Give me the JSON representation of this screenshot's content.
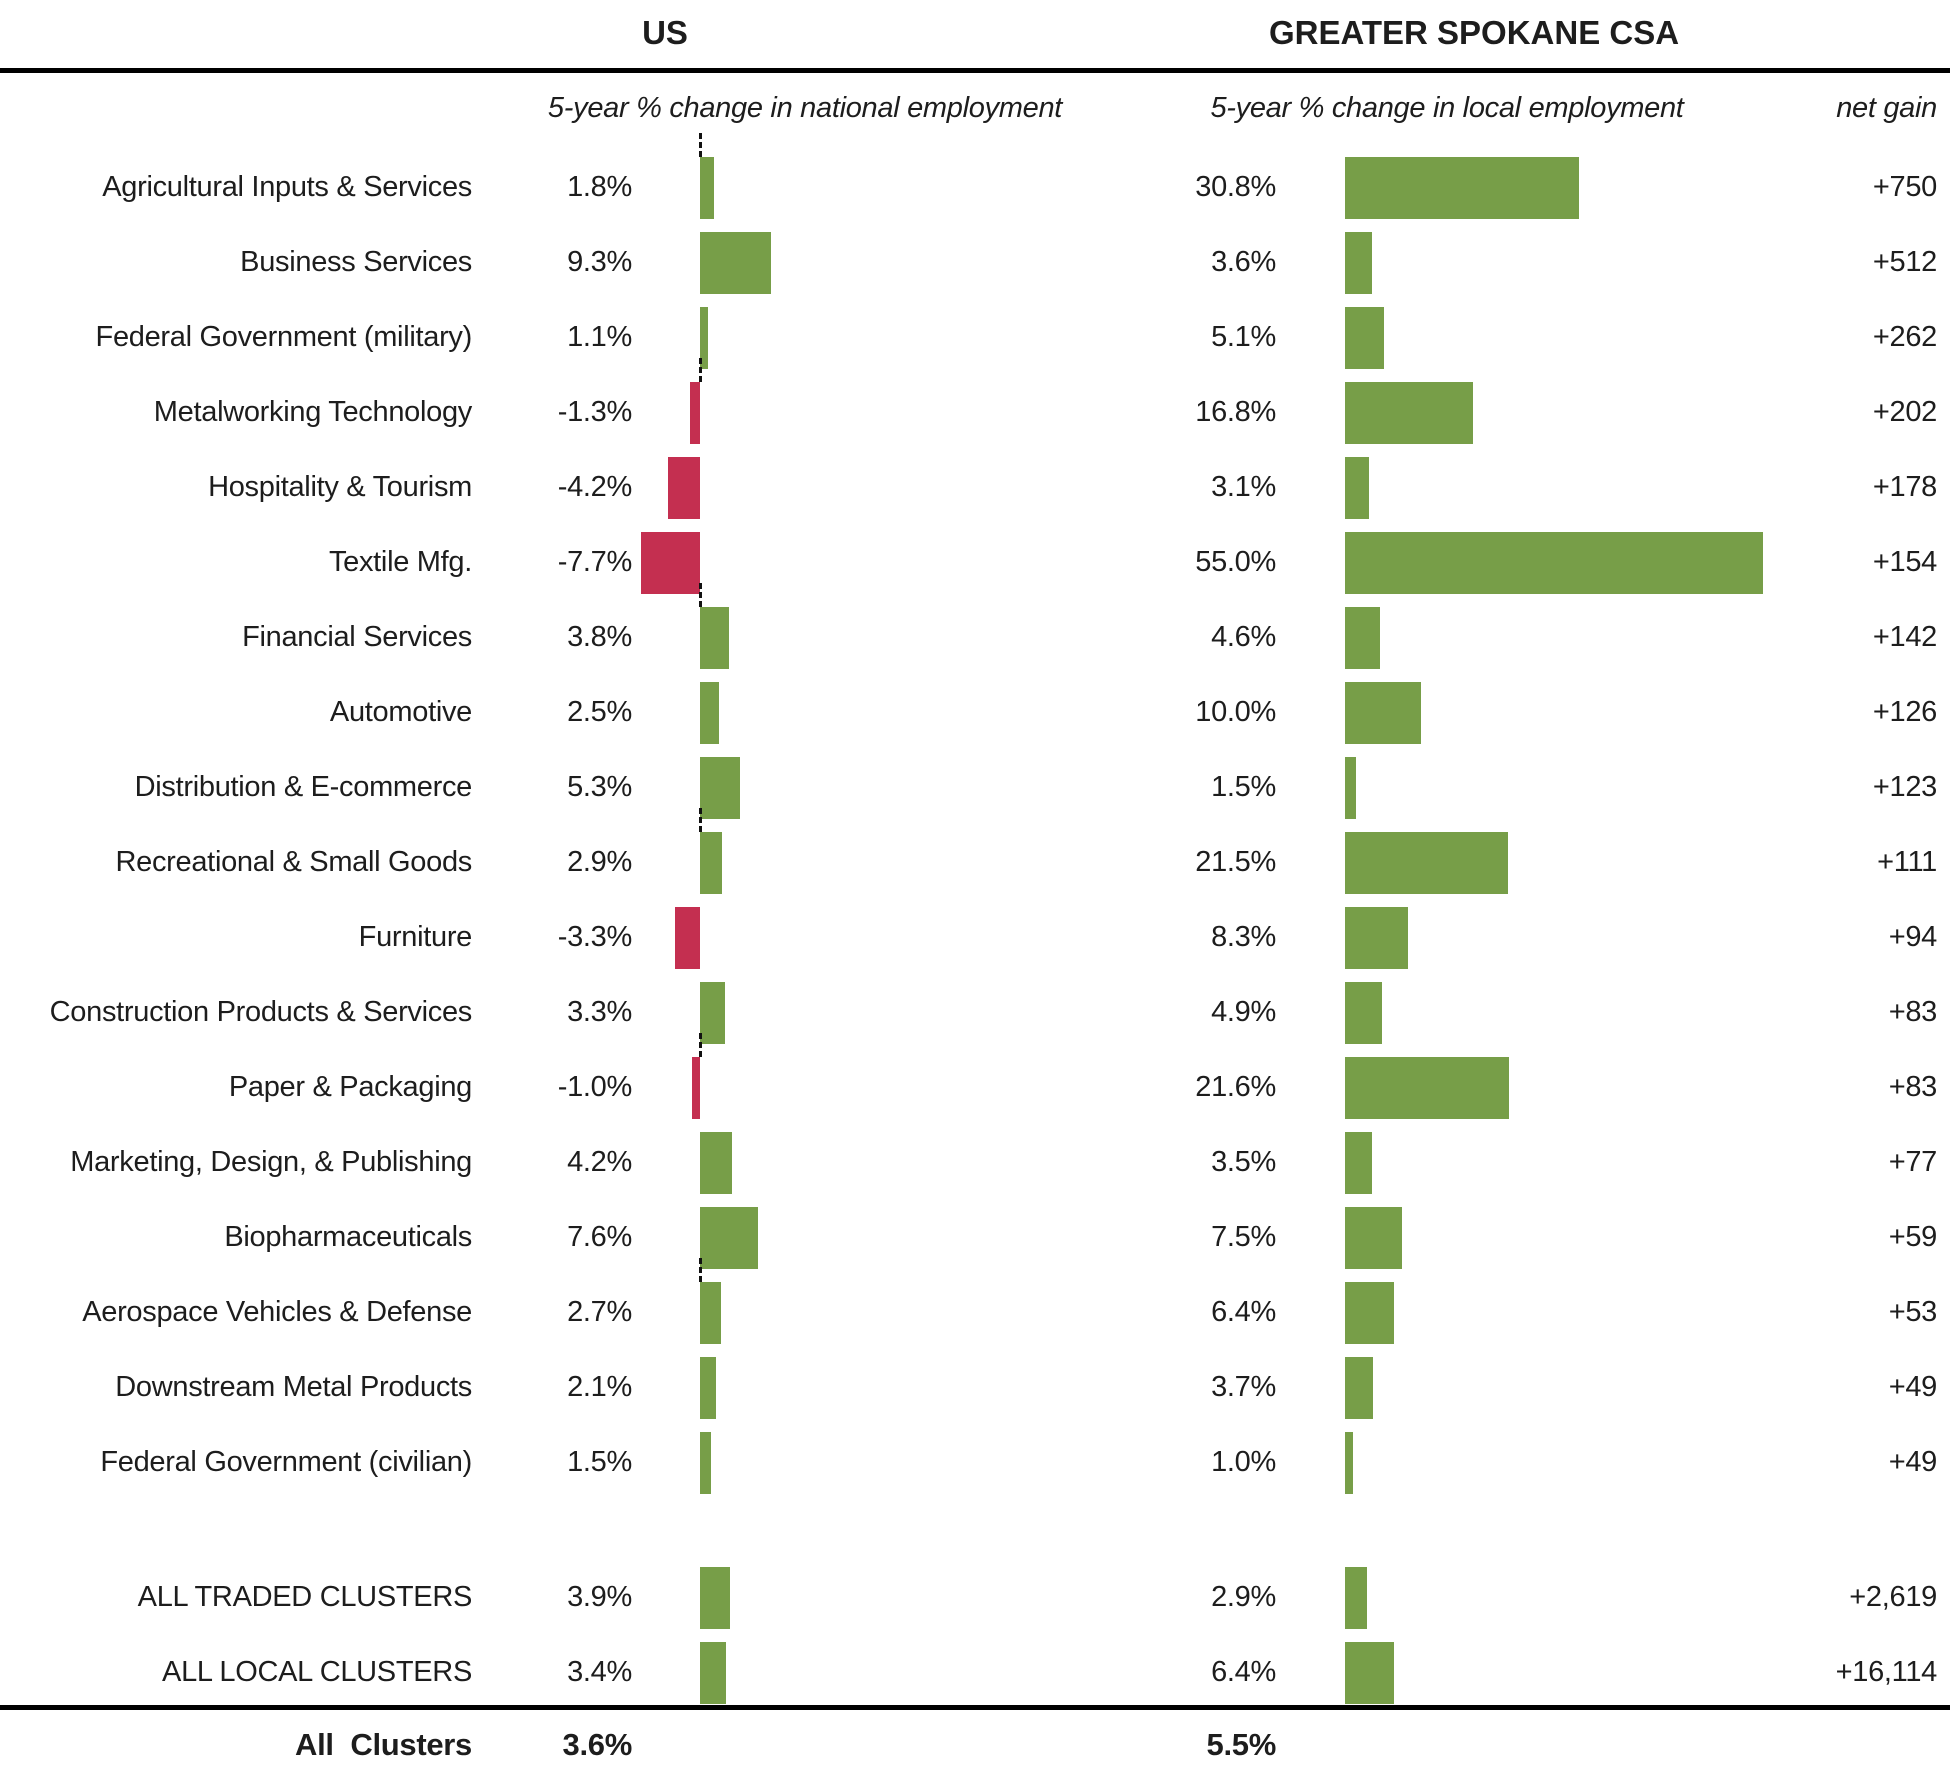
{
  "header": {
    "us_title": "US",
    "csa_title": "GREATER SPOKANE CSA",
    "us_subtitle": "5-year % change in national employment",
    "local_subtitle": "5-year % change in local employment",
    "net_gain_label": "net gain"
  },
  "colors": {
    "positive_bar": "#779e48",
    "negative_bar": "#c42f50",
    "text": "#1d1d1d",
    "rule": "#000000"
  },
  "rows": [
    {
      "label": "Agricultural Inputs & Services",
      "us_pct": 1.8,
      "us_display": "1.8%",
      "local_pct": 30.8,
      "local_display": "30.8%",
      "net_display": "+750"
    },
    {
      "label": "Business Services",
      "us_pct": 9.3,
      "us_display": "9.3%",
      "local_pct": 3.6,
      "local_display": "3.6%",
      "net_display": "+512"
    },
    {
      "label": "Federal Government (military)",
      "us_pct": 1.1,
      "us_display": "1.1%",
      "local_pct": 5.1,
      "local_display": "5.1%",
      "net_display": "+262"
    },
    {
      "label": "Metalworking Technology",
      "us_pct": -1.3,
      "us_display": "-1.3%",
      "local_pct": 16.8,
      "local_display": "16.8%",
      "net_display": "+202"
    },
    {
      "label": "Hospitality & Tourism",
      "us_pct": -4.2,
      "us_display": "-4.2%",
      "local_pct": 3.1,
      "local_display": "3.1%",
      "net_display": "+178"
    },
    {
      "label": "Textile Mfg.",
      "us_pct": -7.7,
      "us_display": "-7.7%",
      "local_pct": 55.0,
      "local_display": "55.0%",
      "net_display": "+154"
    },
    {
      "label": "Financial Services",
      "us_pct": 3.8,
      "us_display": "3.8%",
      "local_pct": 4.6,
      "local_display": "4.6%",
      "net_display": "+142"
    },
    {
      "label": "Automotive",
      "us_pct": 2.5,
      "us_display": "2.5%",
      "local_pct": 10.0,
      "local_display": "10.0%",
      "net_display": "+126"
    },
    {
      "label": "Distribution & E-commerce",
      "us_pct": 5.3,
      "us_display": "5.3%",
      "local_pct": 1.5,
      "local_display": "1.5%",
      "net_display": "+123"
    },
    {
      "label": "Recreational & Small Goods",
      "us_pct": 2.9,
      "us_display": "2.9%",
      "local_pct": 21.5,
      "local_display": "21.5%",
      "net_display": "+111"
    },
    {
      "label": "Furniture",
      "us_pct": -3.3,
      "us_display": "-3.3%",
      "local_pct": 8.3,
      "local_display": "8.3%",
      "net_display": "+94"
    },
    {
      "label": "Construction Products & Services",
      "us_pct": 3.3,
      "us_display": "3.3%",
      "local_pct": 4.9,
      "local_display": "4.9%",
      "net_display": "+83"
    },
    {
      "label": "Paper & Packaging",
      "us_pct": -1.0,
      "us_display": "-1.0%",
      "local_pct": 21.6,
      "local_display": "21.6%",
      "net_display": "+83"
    },
    {
      "label": "Marketing, Design, & Publishing",
      "us_pct": 4.2,
      "us_display": "4.2%",
      "local_pct": 3.5,
      "local_display": "3.5%",
      "net_display": "+77"
    },
    {
      "label": "Biopharmaceuticals",
      "us_pct": 7.6,
      "us_display": "7.6%",
      "local_pct": 7.5,
      "local_display": "7.5%",
      "net_display": "+59"
    },
    {
      "label": "Aerospace Vehicles & Defense",
      "us_pct": 2.7,
      "us_display": "2.7%",
      "local_pct": 6.4,
      "local_display": "6.4%",
      "net_display": "+53"
    },
    {
      "label": "Downstream Metal Products",
      "us_pct": 2.1,
      "us_display": "2.1%",
      "local_pct": 3.7,
      "local_display": "3.7%",
      "net_display": "+49"
    },
    {
      "label": "Federal Government (civilian)",
      "us_pct": 1.5,
      "us_display": "1.5%",
      "local_pct": 1.0,
      "local_display": "1.0%",
      "net_display": "+49"
    }
  ],
  "summary_rows": [
    {
      "label": "ALL TRADED CLUSTERS",
      "us_pct": 3.9,
      "us_display": "3.9%",
      "local_pct": 2.9,
      "local_display": "2.9%",
      "net_display": "+2,619"
    },
    {
      "label": "ALL LOCAL CLUSTERS",
      "us_pct": 3.4,
      "us_display": "3.4%",
      "local_pct": 6.4,
      "local_display": "6.4%",
      "net_display": "+16,114"
    }
  ],
  "total": {
    "label": "All  Clusters",
    "us": "3.6%",
    "local": "5.5%"
  },
  "us_zero_dash_rows": [
    0,
    3,
    6,
    9,
    12,
    15
  ],
  "chart_data": {
    "type": "bar",
    "orientation": "horizontal",
    "categories": [
      "Agricultural Inputs & Services",
      "Business Services",
      "Federal Government (military)",
      "Metalworking Technology",
      "Hospitality & Tourism",
      "Textile Mfg.",
      "Financial Services",
      "Automotive",
      "Distribution & E-commerce",
      "Recreational & Small Goods",
      "Furniture",
      "Construction Products & Services",
      "Paper & Packaging",
      "Marketing, Design, & Publishing",
      "Biopharmaceuticals",
      "Aerospace Vehicles & Defense",
      "Downstream Metal Products",
      "Federal Government (civilian)"
    ],
    "series": [
      {
        "name": "US 5-year % change in national employment",
        "unit": "%",
        "values": [
          1.8,
          9.3,
          1.1,
          -1.3,
          -4.2,
          -7.7,
          3.8,
          2.5,
          5.3,
          2.9,
          -3.3,
          3.3,
          -1.0,
          4.2,
          7.6,
          2.7,
          2.1,
          1.5
        ]
      },
      {
        "name": "Greater Spokane CSA 5-year % change in local employment",
        "unit": "%",
        "values": [
          30.8,
          3.6,
          5.1,
          16.8,
          3.1,
          55.0,
          4.6,
          10.0,
          1.5,
          21.5,
          8.3,
          4.9,
          21.6,
          3.5,
          7.5,
          6.4,
          3.7,
          1.0
        ]
      },
      {
        "name": "net gain",
        "unit": "jobs",
        "values": [
          750,
          512,
          262,
          202,
          178,
          154,
          142,
          126,
          123,
          111,
          94,
          83,
          83,
          77,
          59,
          53,
          49,
          49
        ]
      }
    ],
    "summary": [
      {
        "category": "ALL TRADED CLUSTERS",
        "us_pct": 3.9,
        "local_pct": 2.9,
        "net_gain": 2619
      },
      {
        "category": "ALL LOCAL CLUSTERS",
        "us_pct": 3.4,
        "local_pct": 6.4,
        "net_gain": 16114
      },
      {
        "category": "All Clusters",
        "us_pct": 3.6,
        "local_pct": 5.5
      }
    ],
    "title": "US vs GREATER SPOKANE CSA employment change by cluster",
    "xlabel": "5-year % change in employment",
    "ylabel": "",
    "grid": false,
    "legend_position": "none",
    "bar_color_positive": "#779e48",
    "bar_color_negative": "#c42f50"
  }
}
